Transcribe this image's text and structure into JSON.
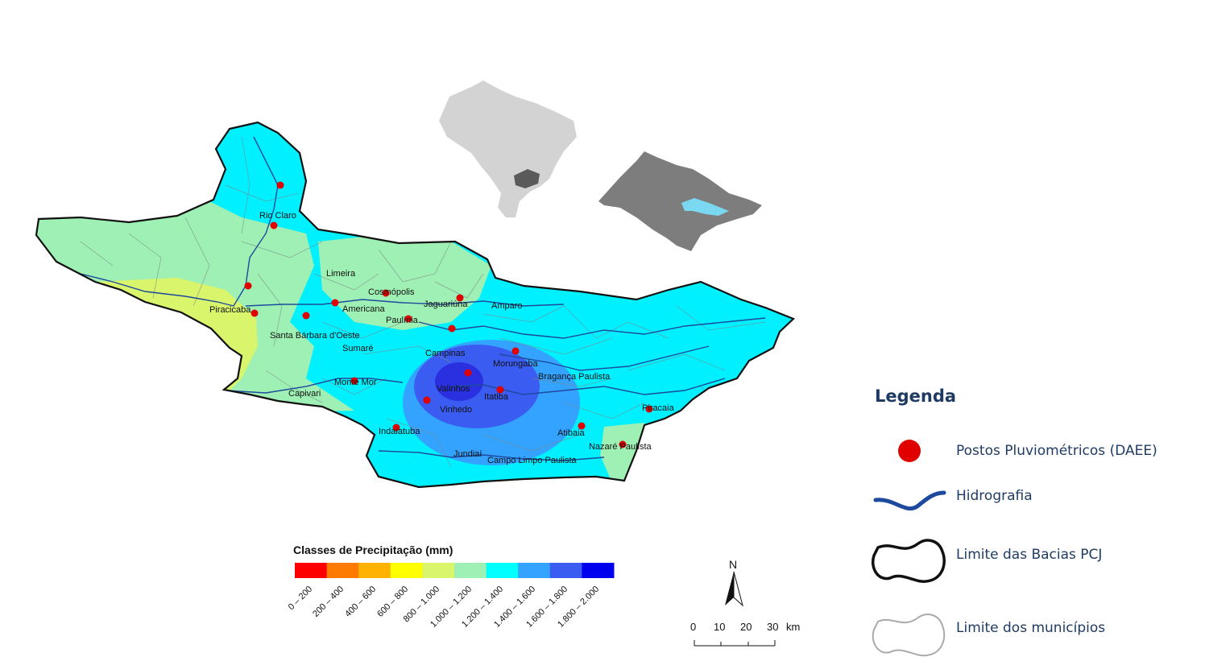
{
  "map": {
    "cities": [
      "Rio Claro",
      "Limeira",
      "Cosmópolis",
      "Piracicaba",
      "Americana",
      "Jaguariúna",
      "Amparo",
      "Paulínia",
      "Santa Bárbara d'Oeste",
      "Sumaré",
      "Campinas",
      "Morungaba",
      "Bragança Paulista",
      "Monte Mor",
      "Capivari",
      "Valinhos",
      "Itatiba",
      "Vinhedo",
      "Piracaia",
      "Indaiatuba",
      "Atibaia",
      "Nazaré Paulista",
      "Jundiaí",
      "Campo Limpo Paulista"
    ]
  },
  "scale": {
    "title": "Classes de Precipitação (mm)",
    "classes": [
      {
        "label": "0 – 200",
        "color": "#ff0000"
      },
      {
        "label": "200 – 400",
        "color": "#ff7a00"
      },
      {
        "label": "400 – 600",
        "color": "#ffb300"
      },
      {
        "label": "600 – 800",
        "color": "#ffff00"
      },
      {
        "label": "800 – 1.000",
        "color": "#d9f56b"
      },
      {
        "label": "1.000 – 1.200",
        "color": "#9ff0b4"
      },
      {
        "label": "1.200 – 1.400",
        "color": "#00ffff"
      },
      {
        "label": "1.400 – 1.600",
        "color": "#33a3ff"
      },
      {
        "label": "1.600 – 1.800",
        "color": "#3a5cf0"
      },
      {
        "label": "1.800 – 2.000",
        "color": "#0000ee"
      }
    ]
  },
  "north": "N",
  "scalebar": {
    "ticks": [
      "0",
      "10",
      "20",
      "30"
    ],
    "unit": "km"
  },
  "legend": {
    "title": "Legenda",
    "items": [
      {
        "label": "Postos Pluviométricos (DAEE)"
      },
      {
        "label": "Hidrografia"
      },
      {
        "label": "Limite das Bacias PCJ"
      },
      {
        "label": "Limite dos municípios"
      }
    ]
  },
  "colors": {
    "station": "#e00000",
    "river": "#1d4a9c",
    "legend_text": "#1f3b63"
  }
}
